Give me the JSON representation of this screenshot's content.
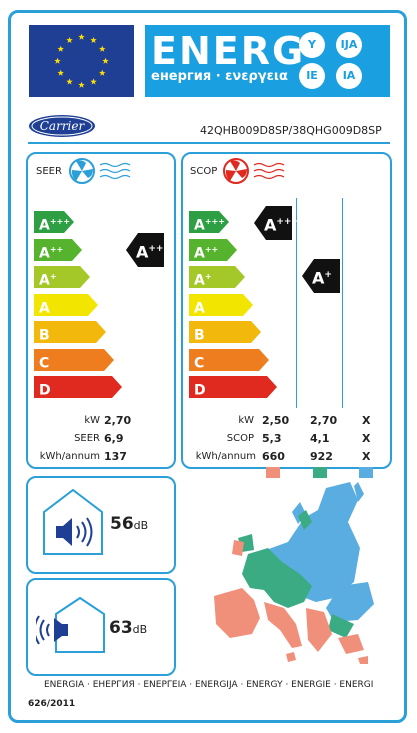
{
  "header": {
    "energy_word": "ENERG",
    "energy_subtitle": "енергия · ενεργεια",
    "badges": [
      "Y",
      "IJA",
      "IE",
      "IA"
    ],
    "brand_logo_text": "Carrier",
    "model": "42QHB009D8SP/38QHG009D8SP"
  },
  "colors": {
    "frame": "#2a9fd8",
    "banner": "#1a9fe0",
    "flag": "#1f3f94",
    "star": "#ffdd00",
    "zone_warmer": "#f0907a",
    "zone_average": "#3aab82",
    "zone_colder": "#5aade0",
    "class_colors": [
      "#2ea043",
      "#55b32e",
      "#a5c829",
      "#f2e600",
      "#f2b80c",
      "#ee7d1f",
      "#e02a20"
    ]
  },
  "classes": [
    {
      "base": "A",
      "sup": "+++"
    },
    {
      "base": "A",
      "sup": "++"
    },
    {
      "base": "A",
      "sup": "+"
    },
    {
      "base": "A",
      "sup": ""
    },
    {
      "base": "B",
      "sup": ""
    },
    {
      "base": "C",
      "sup": ""
    },
    {
      "base": "D",
      "sup": ""
    }
  ],
  "cooling": {
    "label": "SEER",
    "icon": "fan-cold-icon",
    "rating": {
      "base": "A",
      "sup": "++"
    },
    "rows": [
      {
        "label": "kW",
        "value": "2,70"
      },
      {
        "label": "SEER",
        "value": "6,9"
      },
      {
        "label": "kWh/annum",
        "value": "137"
      }
    ]
  },
  "heating": {
    "label": "SCOP",
    "icon": "fan-heat-icon",
    "rating_warmer": {
      "base": "A",
      "sup": "+++"
    },
    "rating_average": {
      "base": "A",
      "sup": "+"
    },
    "rows": [
      {
        "label": "kW",
        "warmer": "2,50",
        "average": "2,70",
        "colder": "X"
      },
      {
        "label": "SCOP",
        "warmer": "5,3",
        "average": "4,1",
        "colder": "X"
      },
      {
        "label": "kWh/annum",
        "warmer": "660",
        "average": "922",
        "colder": "X"
      }
    ]
  },
  "noise": {
    "indoor": {
      "value": "56",
      "unit": "dB"
    },
    "outdoor": {
      "value": "63",
      "unit": "dB"
    }
  },
  "footer": {
    "languages": "ENERGIA · ЕНЕРГИЯ · ΕΝΕΡΓΕΙΑ · ENERGIJA · ENERGY · ENERGIE · ENERGI",
    "regulation": "626/2011"
  }
}
